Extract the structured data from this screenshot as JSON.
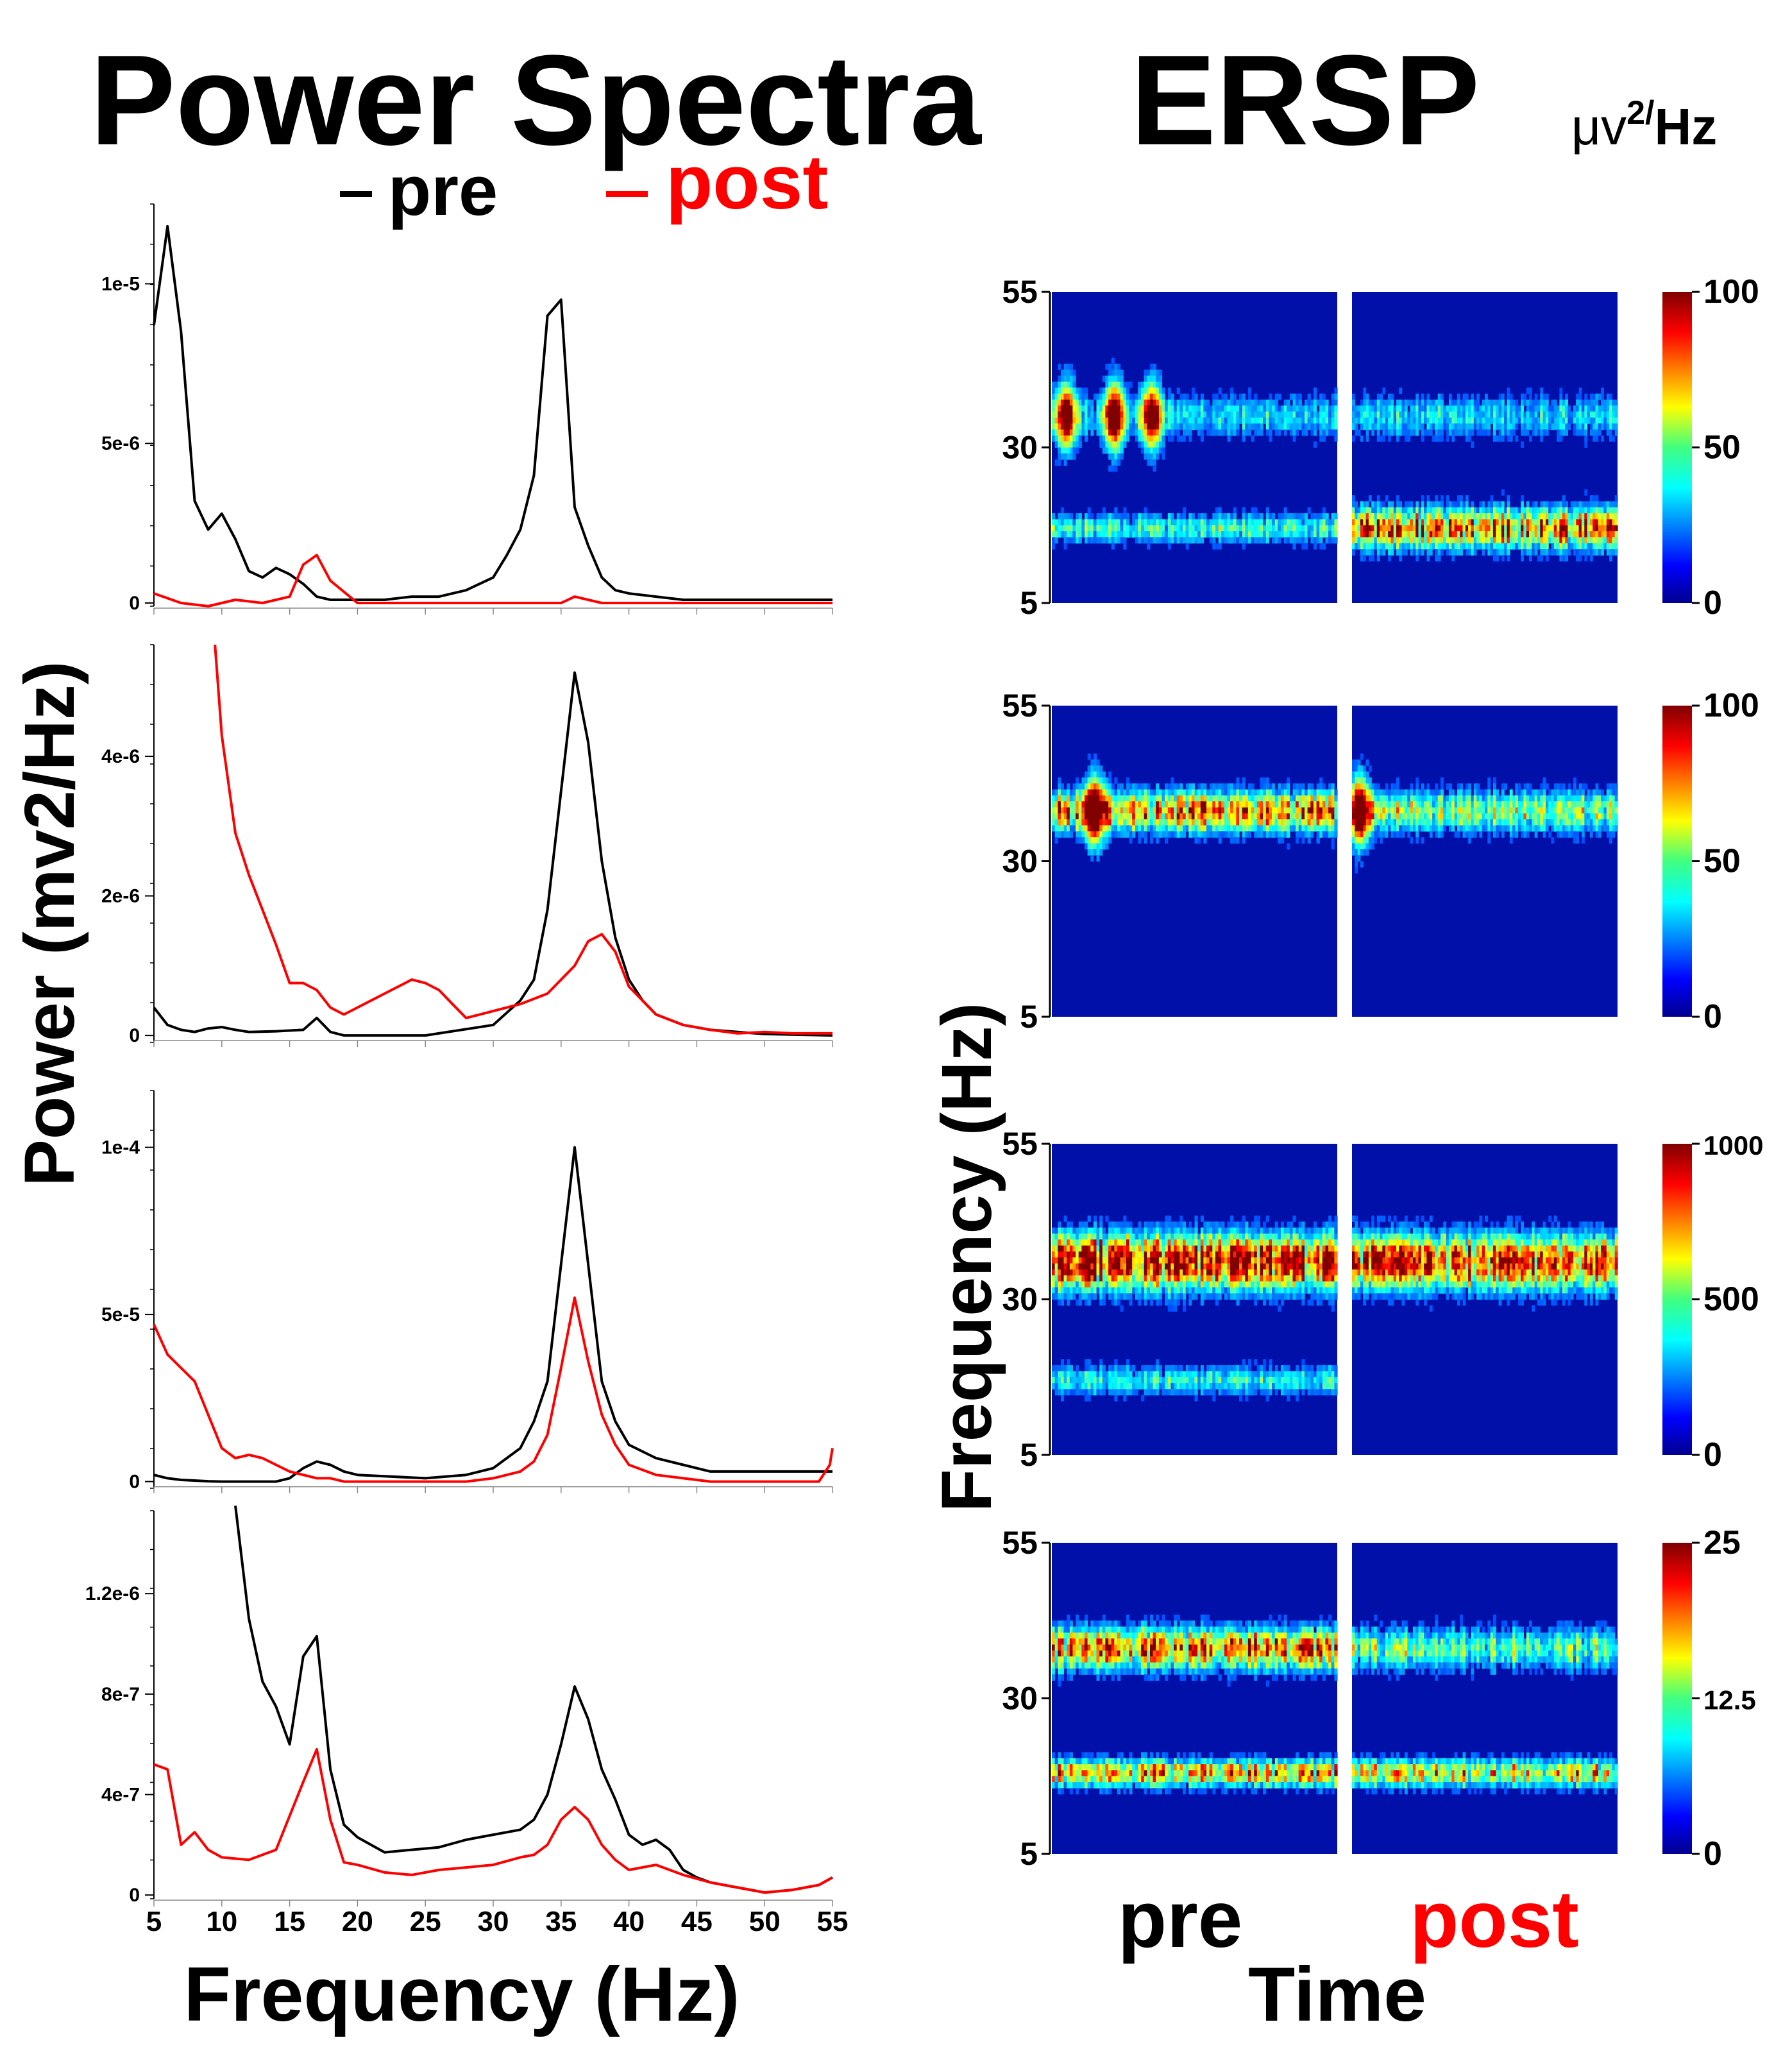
{
  "headings": {
    "power_spectra": "Power Spectra",
    "ersp": "ERSP",
    "units_mu": "μv",
    "units_sup": "2/",
    "units_hz": "Hz"
  },
  "legend": {
    "pre": "pre",
    "post": "post"
  },
  "colors": {
    "pre": "#000000",
    "post": "#ff0000"
  },
  "power_axis": {
    "ylabel": "Power (mv2/Hz)",
    "xlabel": "Frequency (Hz)",
    "xticks": [
      5,
      10,
      15,
      20,
      25,
      30,
      35,
      40,
      45,
      50,
      55
    ]
  },
  "ersp_axis": {
    "ylabel": "Frequency (Hz)",
    "xlabel": "Time",
    "yticks": [
      5,
      30,
      55
    ],
    "condition_labels": [
      "pre",
      "post"
    ]
  },
  "chart_data": [
    {
      "type": "line",
      "panel": 1,
      "xlim": [
        5,
        55
      ],
      "ylim": [
        -1e-07,
        1.25e-05
      ],
      "yticks": [
        0,
        5e-06,
        1e-05
      ],
      "ytick_labels": [
        "0",
        "5e-6",
        "1e-5"
      ],
      "series": [
        {
          "name": "pre",
          "x": [
            5,
            6,
            7,
            8,
            9,
            10,
            11,
            12,
            13,
            14,
            15,
            16,
            17,
            18,
            19,
            20,
            22,
            24,
            26,
            28,
            30,
            31,
            32,
            33,
            34,
            35,
            36,
            37,
            38,
            39,
            40,
            42,
            44,
            46,
            48,
            50,
            52,
            54,
            55
          ],
          "values": [
            8.7e-06,
            1.18e-05,
            8.5e-06,
            3.2e-06,
            2.3e-06,
            2.8e-06,
            2e-06,
            1e-06,
            8e-07,
            1.1e-06,
            9e-07,
            6e-07,
            2e-07,
            1e-07,
            1e-07,
            1e-07,
            1e-07,
            2e-07,
            2e-07,
            4e-07,
            8e-07,
            1.5e-06,
            2.3e-06,
            4e-06,
            9e-06,
            9.5e-06,
            3e-06,
            1.8e-06,
            8e-07,
            4e-07,
            3e-07,
            2e-07,
            1e-07,
            1e-07,
            1e-07,
            1e-07,
            1e-07,
            1e-07,
            1e-07
          ]
        },
        {
          "name": "post",
          "x": [
            5,
            7,
            9,
            11,
            13,
            15,
            16,
            17,
            18,
            20,
            22,
            25,
            30,
            35,
            36,
            38,
            40,
            45,
            50,
            55
          ],
          "values": [
            3e-07,
            0,
            -1e-07,
            1e-07,
            0,
            2e-07,
            1.2e-06,
            1.5e-06,
            7e-07,
            0,
            0,
            0,
            0,
            0,
            2e-07,
            0,
            0,
            0,
            0,
            0
          ]
        }
      ]
    },
    {
      "type": "line",
      "panel": 2,
      "xlim": [
        5,
        55
      ],
      "ylim": [
        -1e-07,
        5.6e-06
      ],
      "yticks": [
        0,
        2e-06,
        4e-06
      ],
      "ytick_labels": [
        "0",
        "2e-6",
        "4e-6"
      ],
      "series": [
        {
          "name": "pre",
          "x": [
            5,
            6,
            7,
            8,
            9,
            10,
            11,
            12,
            14,
            16,
            17,
            18,
            19,
            20,
            25,
            30,
            32,
            33,
            34,
            35,
            36,
            37,
            38,
            39,
            40,
            41,
            42,
            44,
            46,
            48,
            50,
            55
          ],
          "values": [
            4e-07,
            1.5e-07,
            8e-08,
            5e-08,
            1e-07,
            1.2e-07,
            8e-08,
            5e-08,
            6e-08,
            8e-08,
            2.5e-07,
            5e-08,
            0,
            0,
            0,
            1.5e-07,
            5e-07,
            8e-07,
            1.8e-06,
            3.5e-06,
            5.2e-06,
            4.2e-06,
            2.5e-06,
            1.4e-06,
            8e-07,
            5e-07,
            3e-07,
            1.5e-07,
            8e-08,
            5e-08,
            2e-08,
            0
          ]
        },
        {
          "name": "post",
          "x": [
            9.5,
            10,
            11,
            12,
            13,
            14,
            15,
            16,
            17,
            18,
            19,
            20,
            21,
            22,
            23,
            24,
            25,
            26,
            27,
            28,
            30,
            32,
            34,
            36,
            37,
            38,
            39,
            40,
            42,
            44,
            46,
            48,
            50,
            52,
            55
          ],
          "values": [
            5.6e-06,
            4.3e-06,
            2.9e-06,
            2.3e-06,
            1.8e-06,
            1.3e-06,
            7.5e-07,
            7.5e-07,
            6.5e-07,
            4e-07,
            3e-07,
            4e-07,
            5e-07,
            6e-07,
            7e-07,
            8e-07,
            7.5e-07,
            6.5e-07,
            4.5e-07,
            2.5e-07,
            3.5e-07,
            4.5e-07,
            6e-07,
            1e-06,
            1.35e-06,
            1.45e-06,
            1.2e-06,
            7e-07,
            3e-07,
            1.5e-07,
            8e-08,
            3e-08,
            5e-08,
            3e-08,
            3e-08
          ]
        }
      ]
    },
    {
      "type": "line",
      "panel": 3,
      "xlim": [
        5,
        55
      ],
      "ylim": [
        -2e-06,
        0.000117
      ],
      "yticks": [
        0,
        5e-05,
        0.0001
      ],
      "ytick_labels": [
        "0",
        "5e-5",
        "1e-4"
      ],
      "series": [
        {
          "name": "pre",
          "x": [
            5,
            6,
            7,
            8,
            9,
            10,
            11,
            12,
            13,
            14,
            15,
            16,
            17,
            18,
            19,
            20,
            25,
            28,
            30,
            32,
            33,
            34,
            35,
            36,
            37,
            38,
            39,
            40,
            42,
            44,
            46,
            50,
            54,
            55
          ],
          "values": [
            2e-06,
            1e-06,
            5e-07,
            3e-07,
            1e-07,
            0,
            0,
            0,
            0,
            0,
            1e-06,
            4e-06,
            6e-06,
            5e-06,
            3e-06,
            2e-06,
            1e-06,
            2e-06,
            4e-06,
            1e-05,
            1.8e-05,
            3e-05,
            6.5e-05,
            0.0001,
            6.5e-05,
            3e-05,
            1.8e-05,
            1.1e-05,
            7e-06,
            5e-06,
            3e-06,
            3e-06,
            3e-06,
            3e-06
          ]
        },
        {
          "name": "post",
          "x": [
            5,
            6,
            7,
            8,
            9,
            10,
            11,
            12,
            13,
            14,
            15,
            16,
            17,
            18,
            19,
            20,
            22,
            25,
            28,
            30,
            32,
            33,
            34,
            35,
            36,
            37,
            38,
            39,
            40,
            42,
            44,
            46,
            50,
            54,
            54.8,
            55
          ],
          "values": [
            4.7e-05,
            3.8e-05,
            3.4e-05,
            3e-05,
            2e-05,
            1e-05,
            7e-06,
            8e-06,
            7e-06,
            5e-06,
            3e-06,
            2e-06,
            1e-06,
            1e-06,
            0,
            0,
            0,
            0,
            0,
            1e-06,
            3e-06,
            6e-06,
            1.4e-05,
            3.4e-05,
            5.5e-05,
            3.6e-05,
            2e-05,
            1.1e-05,
            5e-06,
            2e-06,
            1e-06,
            0,
            0,
            0,
            5e-06,
            1e-05
          ]
        }
      ]
    },
    {
      "type": "line",
      "panel": 4,
      "xlim": [
        5,
        55
      ],
      "ylim": [
        -1.5e-08,
        1.53e-06
      ],
      "yticks": [
        0,
        4e-07,
        8e-07,
        1.2e-06
      ],
      "ytick_labels": [
        "0",
        "4e-7",
        "8e-7",
        "1.2e-6"
      ],
      "series": [
        {
          "name": "pre",
          "x": [
            11,
            12,
            13,
            14,
            15,
            16,
            17,
            18,
            19,
            20,
            22,
            24,
            26,
            28,
            30,
            32,
            33,
            34,
            35,
            36,
            37,
            38,
            39,
            40,
            41,
            42,
            43,
            44,
            45,
            46,
            48,
            50,
            52,
            54,
            55
          ],
          "values": [
            1.55e-06,
            1.1e-06,
            8.5e-07,
            7.5e-07,
            6e-07,
            9.5e-07,
            1.03e-06,
            5e-07,
            2.8e-07,
            2.3e-07,
            1.7e-07,
            1.8e-07,
            1.9e-07,
            2.2e-07,
            2.4e-07,
            2.6e-07,
            3e-07,
            4e-07,
            6e-07,
            8.3e-07,
            7e-07,
            5e-07,
            3.8e-07,
            2.4e-07,
            2e-07,
            2.2e-07,
            1.8e-07,
            1e-07,
            7e-08,
            5e-08,
            3e-08,
            1e-08,
            2e-08,
            4e-08,
            7e-08
          ]
        },
        {
          "name": "post",
          "x": [
            5,
            6,
            7,
            8,
            9,
            10,
            12,
            14,
            16,
            17,
            18,
            19,
            20,
            22,
            24,
            26,
            28,
            30,
            32,
            33,
            34,
            35,
            36,
            37,
            38,
            39,
            40,
            42,
            44,
            46,
            48,
            50,
            52,
            54,
            55
          ],
          "values": [
            5.2e-07,
            5e-07,
            2e-07,
            2.5e-07,
            1.8e-07,
            1.5e-07,
            1.4e-07,
            1.8e-07,
            4.5e-07,
            5.8e-07,
            3e-07,
            1.3e-07,
            1.2e-07,
            9e-08,
            8e-08,
            1e-07,
            1.1e-07,
            1.2e-07,
            1.5e-07,
            1.6e-07,
            2e-07,
            3e-07,
            3.5e-07,
            3e-07,
            2e-07,
            1.4e-07,
            1e-07,
            1.2e-07,
            8e-08,
            5e-08,
            3e-08,
            1e-08,
            2e-08,
            4e-08,
            7e-08
          ]
        }
      ]
    },
    {
      "type": "heatmap",
      "panel": 1,
      "ylim": [
        5,
        55
      ],
      "colorbar_range": [
        0,
        100
      ],
      "colorbar_ticks": [
        "100",
        "50",
        "0"
      ],
      "colorscale": "jet",
      "bands": [
        {
          "condition": "pre",
          "freq": 35,
          "strength": 0.25,
          "width": 3
        },
        {
          "condition": "pre",
          "freq": 17,
          "strength": 0.35,
          "width": 2
        },
        {
          "condition": "post",
          "freq": 17,
          "strength": 0.75,
          "width": 3
        },
        {
          "condition": "post",
          "freq": 35,
          "strength": 0.25,
          "width": 3
        }
      ],
      "events": [
        {
          "condition": "pre",
          "t": 0.05,
          "freq": 35,
          "strength": 0.9
        },
        {
          "condition": "pre",
          "t": 0.22,
          "freq": 35,
          "strength": 1.0
        },
        {
          "condition": "pre",
          "t": 0.35,
          "freq": 35,
          "strength": 0.9
        }
      ]
    },
    {
      "type": "heatmap",
      "panel": 2,
      "ylim": [
        5,
        55
      ],
      "colorbar_range": [
        0,
        100
      ],
      "colorbar_ticks": [
        "100",
        "50",
        "0"
      ],
      "colorscale": "jet",
      "bands": [
        {
          "condition": "pre",
          "freq": 38,
          "strength": 0.7,
          "width": 3
        },
        {
          "condition": "post",
          "freq": 38,
          "strength": 0.45,
          "width": 3
        }
      ],
      "events": [
        {
          "condition": "pre",
          "t": 0.15,
          "freq": 38,
          "strength": 1.0
        },
        {
          "condition": "post",
          "t": 0.03,
          "freq": 38,
          "strength": 1.0
        }
      ]
    },
    {
      "type": "heatmap",
      "panel": 3,
      "ylim": [
        5,
        55
      ],
      "colorbar_range": [
        0,
        1000
      ],
      "colorbar_ticks": [
        "1000",
        "500",
        "0"
      ],
      "colorscale": "jet",
      "bands": [
        {
          "condition": "pre",
          "freq": 36,
          "strength": 0.95,
          "width": 4
        },
        {
          "condition": "post",
          "freq": 36,
          "strength": 0.85,
          "width": 4
        },
        {
          "condition": "pre",
          "freq": 17,
          "strength": 0.3,
          "width": 2
        }
      ],
      "events": []
    },
    {
      "type": "heatmap",
      "panel": 4,
      "ylim": [
        5,
        55
      ],
      "colorbar_range": [
        0,
        25
      ],
      "colorbar_ticks": [
        "25",
        "12.5",
        "0"
      ],
      "colorscale": "jet",
      "bands": [
        {
          "condition": "pre",
          "freq": 38,
          "strength": 0.75,
          "width": 3
        },
        {
          "condition": "pre",
          "freq": 18,
          "strength": 0.65,
          "width": 2
        },
        {
          "condition": "post",
          "freq": 38,
          "strength": 0.4,
          "width": 3
        },
        {
          "condition": "post",
          "freq": 18,
          "strength": 0.6,
          "width": 2
        }
      ],
      "events": []
    }
  ]
}
